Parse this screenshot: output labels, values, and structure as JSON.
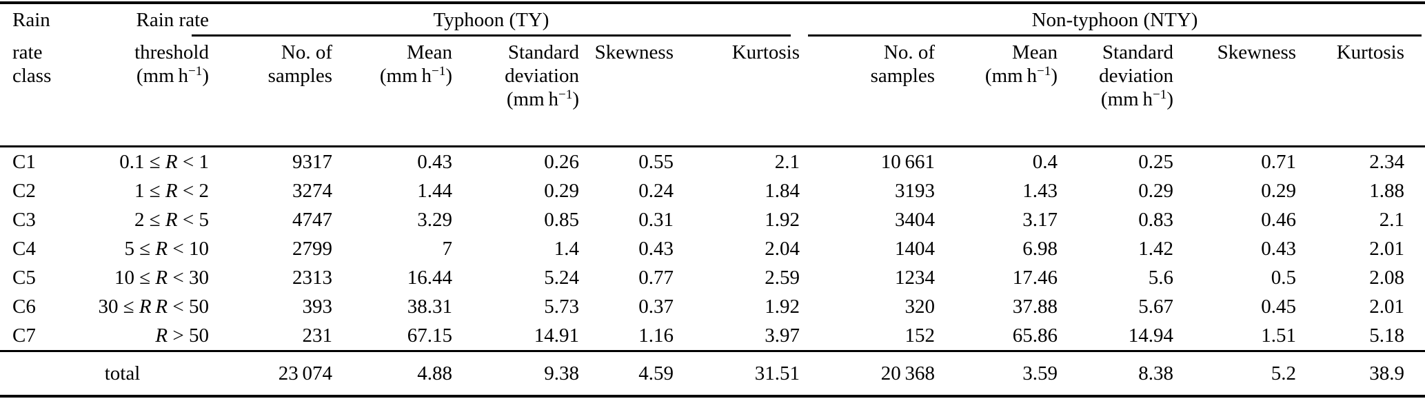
{
  "table": {
    "groups": [
      {
        "label": "Typhoon (TY)"
      },
      {
        "label": "Non-typhoon (NTY)"
      }
    ],
    "headers": {
      "class_lines": [
        "Rain",
        "rate",
        "class"
      ],
      "threshold_lines": [
        "Rain rate",
        "threshold"
      ],
      "samples_lines": [
        "No. of",
        "samples"
      ],
      "mean": "Mean",
      "std_lines": [
        "Standard",
        "deviation"
      ],
      "skewness": "Skewness",
      "kurtosis": "Kurtosis",
      "unit": {
        "pre": "(mm h",
        "sup": "−1",
        "post": ")"
      }
    },
    "rows": [
      {
        "class": "C1",
        "threshold": {
          "pre": "0.1 ≤ ",
          "r": "R",
          "post": " < 1"
        },
        "ty": {
          "samples": "9317",
          "mean": "0.43",
          "std": "0.26",
          "skew": "0.55",
          "kurt": "2.1"
        },
        "nty": {
          "samples": "10 661",
          "mean": "0.4",
          "std": "0.25",
          "skew": "0.71",
          "kurt": "2.34"
        }
      },
      {
        "class": "C2",
        "threshold": {
          "pre": "1 ≤ ",
          "r": "R",
          "post": " < 2"
        },
        "ty": {
          "samples": "3274",
          "mean": "1.44",
          "std": "0.29",
          "skew": "0.24",
          "kurt": "1.84"
        },
        "nty": {
          "samples": "3193",
          "mean": "1.43",
          "std": "0.29",
          "skew": "0.29",
          "kurt": "1.88"
        }
      },
      {
        "class": "C3",
        "threshold": {
          "pre": "2 ≤ ",
          "r": "R",
          "post": " < 5"
        },
        "ty": {
          "samples": "4747",
          "mean": "3.29",
          "std": "0.85",
          "skew": "0.31",
          "kurt": "1.92"
        },
        "nty": {
          "samples": "3404",
          "mean": "3.17",
          "std": "0.83",
          "skew": "0.46",
          "kurt": "2.1"
        }
      },
      {
        "class": "C4",
        "threshold": {
          "pre": "5 ≤ ",
          "r": "R",
          "post": " < 10"
        },
        "ty": {
          "samples": "2799",
          "mean": "7",
          "std": "1.4",
          "skew": "0.43",
          "kurt": "2.04"
        },
        "nty": {
          "samples": "1404",
          "mean": "6.98",
          "std": "1.42",
          "skew": "0.43",
          "kurt": "2.01"
        }
      },
      {
        "class": "C5",
        "threshold": {
          "pre": "10 ≤ ",
          "r": "R",
          "post": " < 30"
        },
        "ty": {
          "samples": "2313",
          "mean": "16.44",
          "std": "5.24",
          "skew": "0.77",
          "kurt": "2.59"
        },
        "nty": {
          "samples": "1234",
          "mean": "17.46",
          "std": "5.6",
          "skew": "0.5",
          "kurt": "2.08"
        }
      },
      {
        "class": "C6",
        "threshold": {
          "pre": "30 ≤ ",
          "r": "R R",
          "post": " < 50"
        },
        "ty": {
          "samples": "393",
          "mean": "38.31",
          "std": "5.73",
          "skew": "0.37",
          "kurt": "1.92"
        },
        "nty": {
          "samples": "320",
          "mean": "37.88",
          "std": "5.67",
          "skew": "0.45",
          "kurt": "2.01"
        }
      },
      {
        "class": "C7",
        "threshold": {
          "pre": "",
          "r": "R",
          "post": " > 50"
        },
        "ty": {
          "samples": "231",
          "mean": "67.15",
          "std": "14.91",
          "skew": "1.16",
          "kurt": "3.97"
        },
        "nty": {
          "samples": "152",
          "mean": "65.86",
          "std": "14.94",
          "skew": "1.51",
          "kurt": "5.18"
        }
      }
    ],
    "total": {
      "label": "total",
      "ty": {
        "samples": "23 074",
        "mean": "4.88",
        "std": "9.38",
        "skew": "4.59",
        "kurt": "31.51"
      },
      "nty": {
        "samples": "20 368",
        "mean": "3.59",
        "std": "8.38",
        "skew": "5.2",
        "kurt": "38.9"
      }
    }
  }
}
